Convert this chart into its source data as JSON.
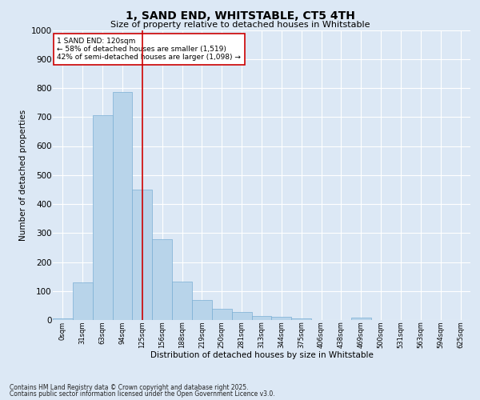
{
  "title": "1, SAND END, WHITSTABLE, CT5 4TH",
  "subtitle": "Size of property relative to detached houses in Whitstable",
  "xlabel": "Distribution of detached houses by size in Whitstable",
  "ylabel": "Number of detached properties",
  "bar_labels": [
    "0sqm",
    "31sqm",
    "63sqm",
    "94sqm",
    "125sqm",
    "156sqm",
    "188sqm",
    "219sqm",
    "250sqm",
    "281sqm",
    "313sqm",
    "344sqm",
    "375sqm",
    "406sqm",
    "438sqm",
    "469sqm",
    "500sqm",
    "531sqm",
    "563sqm",
    "594sqm",
    "625sqm"
  ],
  "bar_values": [
    5,
    130,
    705,
    785,
    450,
    278,
    133,
    70,
    40,
    28,
    15,
    10,
    5,
    0,
    0,
    8,
    0,
    0,
    0,
    0,
    0
  ],
  "bar_color": "#b8d4ea",
  "bar_edgecolor": "#7aafd4",
  "bar_linewidth": 0.5,
  "vline_x": 4,
  "vline_color": "#cc0000",
  "vline_linewidth": 1.2,
  "ylim": [
    0,
    1000
  ],
  "yticks": [
    0,
    100,
    200,
    300,
    400,
    500,
    600,
    700,
    800,
    900,
    1000
  ],
  "annotation_text": "1 SAND END: 120sqm\n← 58% of detached houses are smaller (1,519)\n42% of semi-detached houses are larger (1,098) →",
  "annotation_box_color": "#ffffff",
  "annotation_box_edgecolor": "#cc0000",
  "bg_color": "#dce8f5",
  "plot_bg_color": "#dce8f5",
  "grid_color": "#ffffff",
  "title_fontsize": 10,
  "subtitle_fontsize": 8,
  "ylabel_fontsize": 7.5,
  "xlabel_fontsize": 7.5,
  "ytick_fontsize": 7.5,
  "xtick_fontsize": 6,
  "annotation_fontsize": 6.5,
  "footer_line1": "Contains HM Land Registry data © Crown copyright and database right 2025.",
  "footer_line2": "Contains public sector information licensed under the Open Government Licence v3.0.",
  "footer_fontsize": 5.5
}
